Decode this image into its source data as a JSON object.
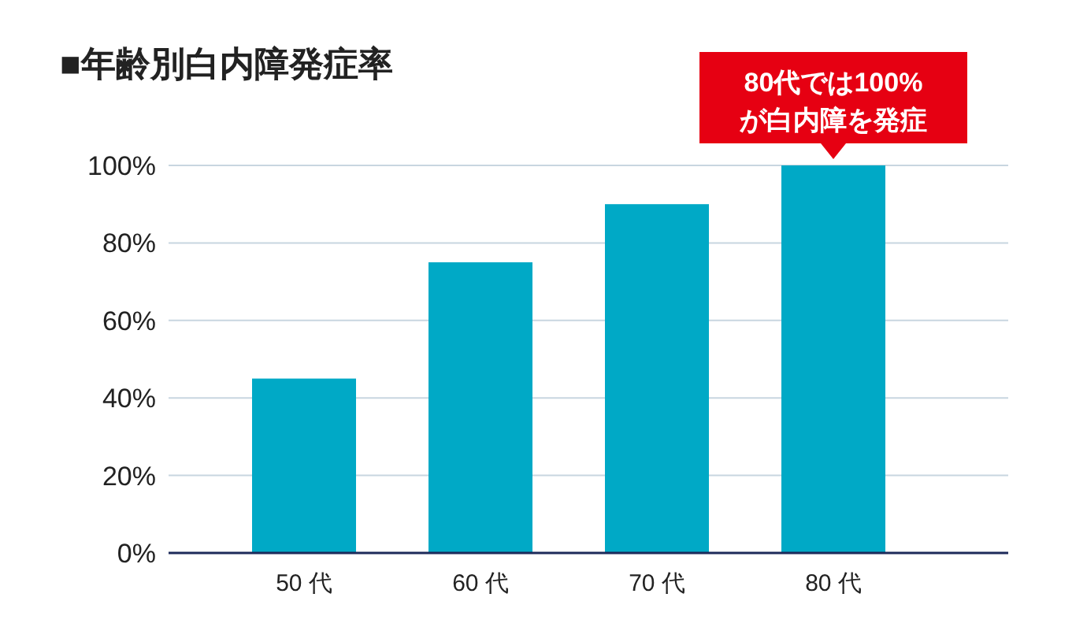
{
  "chart_data": {
    "type": "bar",
    "title": "■年齢別白内障発症率",
    "categories": [
      "50 代",
      "60 代",
      "70 代",
      "80 代"
    ],
    "values": [
      45,
      75,
      90,
      100
    ],
    "color": "#00a9c6",
    "ylim": [
      0,
      100
    ],
    "yticks": [
      {
        "value": 0,
        "label": "0%"
      },
      {
        "value": 20,
        "label": "20%"
      },
      {
        "value": 40,
        "label": "40%"
      },
      {
        "value": 60,
        "label": "60%"
      },
      {
        "value": 80,
        "label": "80%"
      },
      {
        "value": 100,
        "label": "100%"
      }
    ],
    "grid": "y",
    "annotations": [
      {
        "text": "80代では100%が白内障を発症",
        "x": "80 代",
        "y": 100
      }
    ]
  }
}
